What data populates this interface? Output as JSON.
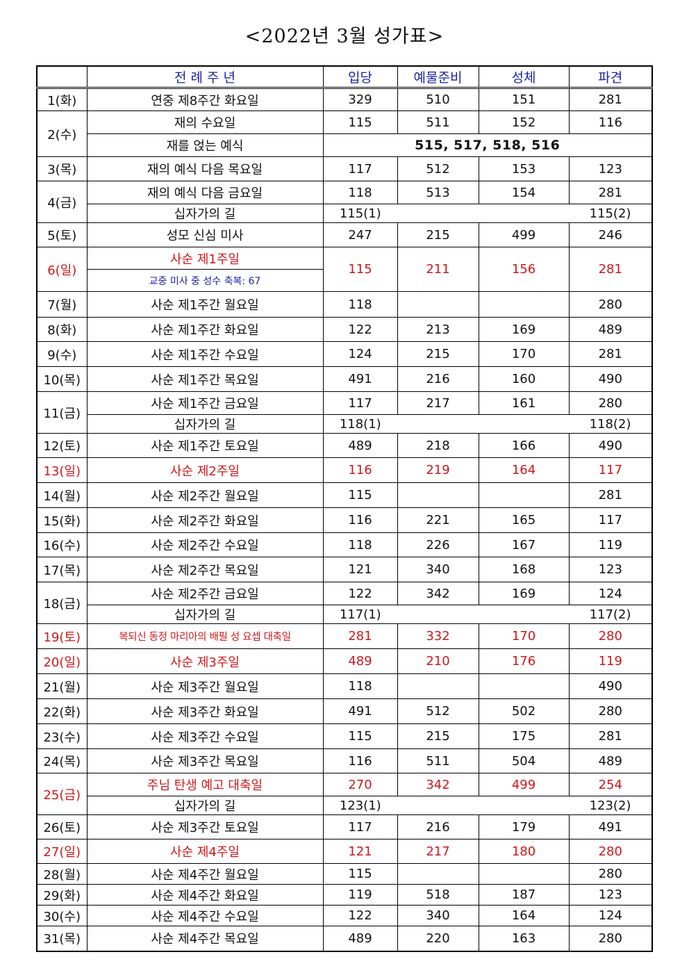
{
  "title": "<2022년 3월 성가표>",
  "headers": [
    "",
    "전 례 주 년",
    "입당",
    "예물준비",
    "성체",
    "파견"
  ],
  "rows": [
    {
      "date": "1(화)",
      "name": "연중 제8주간 화요일",
      "v": [
        "329",
        "510",
        "151",
        "281"
      ]
    },
    {
      "date": "2(수)",
      "name": "재의 수요일",
      "v": [
        "115",
        "511",
        "152",
        "116"
      ],
      "sub": {
        "name": "재를 얹는 예식",
        "text": "515, 517, 518, 516"
      }
    },
    {
      "date": "3(목)",
      "name": "재의 예식 다음 목요일",
      "v": [
        "117",
        "512",
        "153",
        "123"
      ]
    },
    {
      "date": "4(금)",
      "name": "재의 예식 다음 금요일",
      "v": [
        "118",
        "513",
        "154",
        "281"
      ],
      "way": {
        "name": "십자가의 길",
        "start": "115(1)",
        "end": "115(2)"
      }
    },
    {
      "date": "5(토)",
      "name": "성모 신심 미사",
      "v": [
        "247",
        "215",
        "499",
        "246"
      ]
    },
    {
      "date": "6(일)",
      "name": "사순 제1주일",
      "v": [
        "115",
        "211",
        "156",
        "281"
      ],
      "note": "교중 미사 중 성수 축복: 67"
    },
    {
      "date": "7(월)",
      "name": "사순 제1주간 월요일",
      "v": [
        "118",
        "",
        "",
        "280"
      ]
    },
    {
      "date": "8(화)",
      "name": "사순 제1주간 화요일",
      "v": [
        "122",
        "213",
        "169",
        "489"
      ]
    },
    {
      "date": "9(수)",
      "name": "사순 제1주간 수요일",
      "v": [
        "124",
        "215",
        "170",
        "281"
      ]
    },
    {
      "date": "10(목)",
      "name": "사순 제1주간 목요일",
      "v": [
        "491",
        "216",
        "160",
        "490"
      ]
    },
    {
      "date": "11(금)",
      "name": "사순 제1주간 금요일",
      "v": [
        "117",
        "217",
        "161",
        "280"
      ],
      "way": {
        "name": "십자가의 길",
        "start": "118(1)",
        "end": "118(2)"
      }
    },
    {
      "date": "12(토)",
      "name": "사순 제1주간 토요일",
      "v": [
        "489",
        "218",
        "166",
        "490"
      ]
    },
    {
      "date": "13(일)",
      "name": "사순 제2주일",
      "v": [
        "116",
        "219",
        "164",
        "117"
      ]
    },
    {
      "date": "14(월)",
      "name": "사순 제2주간 월요일",
      "v": [
        "115",
        "",
        "",
        "281"
      ]
    },
    {
      "date": "15(화)",
      "name": "사순 제2주간 화요일",
      "v": [
        "116",
        "221",
        "165",
        "117"
      ]
    },
    {
      "date": "16(수)",
      "name": "사순 제2주간 수요일",
      "v": [
        "118",
        "226",
        "167",
        "119"
      ]
    },
    {
      "date": "17(목)",
      "name": "사순 제2주간 목요일",
      "v": [
        "121",
        "340",
        "168",
        "123"
      ]
    },
    {
      "date": "18(금)",
      "name": "사순 제2주간 금요일",
      "v": [
        "122",
        "342",
        "169",
        "124"
      ],
      "way": {
        "name": "십자가의 길",
        "start": "117(1)",
        "end": "117(2)"
      }
    },
    {
      "date": "19(토)",
      "name": "복되신 동정 마리아의 배필 성 요셉 대축일",
      "v": [
        "281",
        "332",
        "170",
        "280"
      ]
    },
    {
      "date": "20(일)",
      "name": "사순 제3주일",
      "v": [
        "489",
        "210",
        "176",
        "119"
      ]
    },
    {
      "date": "21(월)",
      "name": "사순 제3주간 월요일",
      "v": [
        "118",
        "",
        "",
        "490"
      ]
    },
    {
      "date": "22(화)",
      "name": "사순 제3주간 화요일",
      "v": [
        "491",
        "512",
        "502",
        "280"
      ]
    },
    {
      "date": "23(수)",
      "name": "사순 제3주간 수요일",
      "v": [
        "115",
        "215",
        "175",
        "281"
      ]
    },
    {
      "date": "24(목)",
      "name": "사순 제3주간 목요일",
      "v": [
        "116",
        "511",
        "504",
        "489"
      ]
    },
    {
      "date": "25(금)",
      "name": "주님 탄생 예고 대축일",
      "v": [
        "270",
        "342",
        "499",
        "254"
      ],
      "way": {
        "name": "십자가의 길",
        "start": "123(1)",
        "end": "123(2)"
      }
    },
    {
      "date": "26(토)",
      "name": "사순 제3주간 토요일",
      "v": [
        "117",
        "216",
        "179",
        "491"
      ]
    },
    {
      "date": "27(일)",
      "name": "사순 제4주일",
      "v": [
        "121",
        "217",
        "180",
        "280"
      ]
    },
    {
      "date": "28(월)",
      "name": "사순 제4주간 월요일",
      "v": [
        "115",
        "",
        "",
        "280"
      ]
    },
    {
      "date": "29(화)",
      "name": "사순 제4주간 화요일",
      "v": [
        "119",
        "518",
        "187",
        "123"
      ]
    },
    {
      "date": "30(수)",
      "name": "사순 제4주간 수요일",
      "v": [
        "122",
        "340",
        "164",
        "124"
      ]
    },
    {
      "date": "31(목)",
      "name": "사순 제4주간 목요일",
      "v": [
        "489",
        "220",
        "163",
        "280"
      ]
    }
  ],
  "colors": {
    "header_text": "#1a22a8",
    "feast_red": "#d0161a",
    "note_blue": "#1a22a8"
  }
}
